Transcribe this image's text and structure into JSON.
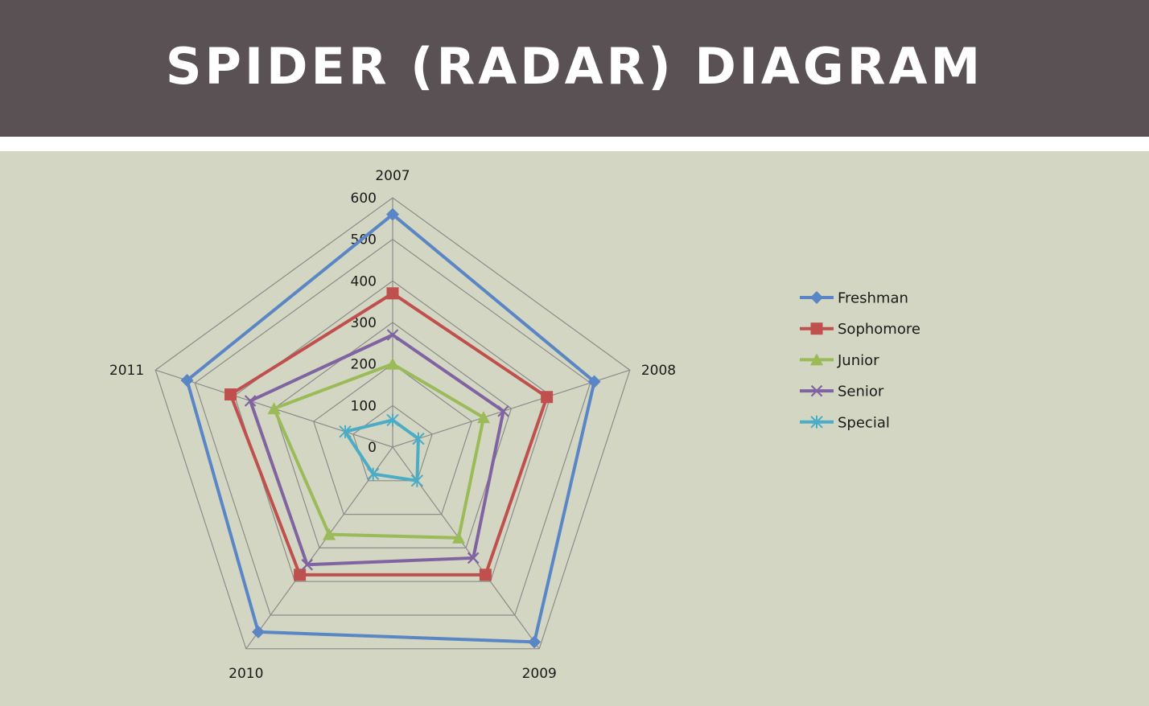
{
  "page": {
    "title": "SPIDER (RADAR) DIAGRAM"
  },
  "colors": {
    "header_bg": "#595154",
    "chart_bg": "#d3d6c2",
    "grid": "#8c8c8c"
  },
  "chart_data": {
    "type": "radar",
    "title": "",
    "categories": [
      "2007",
      "2008",
      "2009",
      "2010",
      "2011"
    ],
    "rlim": [
      0,
      600
    ],
    "ticks": [
      0,
      100,
      200,
      300,
      400,
      500,
      600
    ],
    "grid": true,
    "legend_position": "right",
    "series": [
      {
        "name": "Freshman",
        "color": "#5b86c5",
        "marker": "diamond",
        "values": [
          560,
          510,
          580,
          550,
          520
        ]
      },
      {
        "name": "Sophomore",
        "color": "#c0504d",
        "marker": "square",
        "values": [
          370,
          390,
          380,
          380,
          410
        ]
      },
      {
        "name": "Junior",
        "color": "#9bbb59",
        "marker": "triangle",
        "values": [
          200,
          230,
          270,
          260,
          300
        ]
      },
      {
        "name": "Senior",
        "color": "#8064a2",
        "marker": "x",
        "values": [
          270,
          280,
          330,
          350,
          360
        ]
      },
      {
        "name": "Special",
        "color": "#4bacc6",
        "marker": "star",
        "values": [
          65,
          65,
          100,
          80,
          120
        ]
      }
    ]
  }
}
